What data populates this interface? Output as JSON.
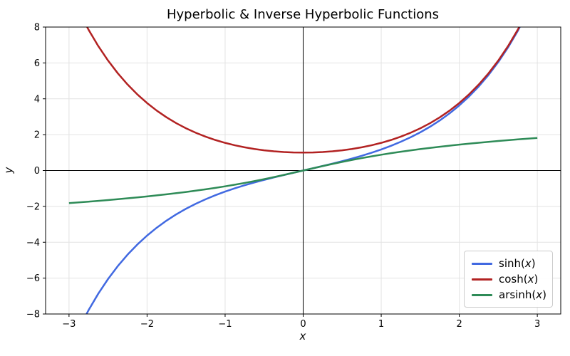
{
  "figure": {
    "title": "Hyperbolic & Inverse Hyperbolic Functions",
    "xlabel": "x",
    "ylabel": "y"
  },
  "colors": {
    "sinh": "#4169e1",
    "cosh": "#b22222",
    "arsinh": "#2e8b57",
    "grid": "#e3e3e3",
    "axis": "#000000",
    "background": "#ffffff",
    "legend_border": "#cccccc"
  },
  "chart_data": {
    "type": "line",
    "title": "Hyperbolic & Inverse Hyperbolic Functions",
    "xlabel": "x",
    "ylabel": "y",
    "xlim": [
      -3.3,
      3.3
    ],
    "ylim": [
      -8,
      8
    ],
    "xticks": [
      -3,
      -2,
      -1,
      0,
      1,
      2,
      3
    ],
    "yticks": [
      -8,
      -6,
      -4,
      -2,
      0,
      2,
      4,
      6,
      8
    ],
    "grid": true,
    "zero_lines": true,
    "legend_position": "lower right",
    "x": [
      -3,
      -2.875,
      -2.75,
      -2.625,
      -2.5,
      -2.375,
      -2.25,
      -2.125,
      -2,
      -1.875,
      -1.75,
      -1.625,
      -1.5,
      -1.375,
      -1.25,
      -1.125,
      -1,
      -0.875,
      -0.75,
      -0.625,
      -0.5,
      -0.375,
      -0.25,
      -0.125,
      0,
      0.125,
      0.25,
      0.375,
      0.5,
      0.625,
      0.75,
      0.875,
      1,
      1.125,
      1.25,
      1.375,
      1.5,
      1.625,
      1.75,
      1.875,
      2,
      2.125,
      2.25,
      2.375,
      2.5,
      2.625,
      2.75,
      2.875,
      3
    ],
    "series": [
      {
        "name": "sinh(x)",
        "color": "#4169e1",
        "values": [
          -10.018,
          -8.835,
          -7.789,
          -6.866,
          -6.05,
          -5.329,
          -4.691,
          -4.127,
          -3.627,
          -3.184,
          -2.79,
          -2.441,
          -2.129,
          -1.851,
          -1.602,
          -1.378,
          -1.175,
          -0.991,
          -0.822,
          -0.666,
          -0.521,
          -0.384,
          -0.253,
          -0.125,
          0,
          0.125,
          0.253,
          0.384,
          0.521,
          0.666,
          0.822,
          0.991,
          1.175,
          1.378,
          1.602,
          1.851,
          2.129,
          2.441,
          2.79,
          3.184,
          3.627,
          4.127,
          4.691,
          5.329,
          6.05,
          6.866,
          7.789,
          8.835,
          10.018
        ]
      },
      {
        "name": "cosh(x)",
        "color": "#b22222",
        "values": [
          10.068,
          8.891,
          7.853,
          6.939,
          6.132,
          5.422,
          4.797,
          4.246,
          3.762,
          3.337,
          2.964,
          2.638,
          2.352,
          2.104,
          1.888,
          1.702,
          1.543,
          1.408,
          1.295,
          1.202,
          1.128,
          1.071,
          1.031,
          1.008,
          1,
          1.008,
          1.031,
          1.071,
          1.128,
          1.202,
          1.295,
          1.408,
          1.543,
          1.702,
          1.888,
          2.104,
          2.352,
          2.638,
          2.964,
          3.337,
          3.762,
          4.246,
          4.797,
          5.422,
          6.132,
          6.939,
          7.853,
          8.891,
          10.068
        ]
      },
      {
        "name": "arsinh(x)",
        "color": "#2e8b57",
        "values": [
          -1.818,
          -1.778,
          -1.736,
          -1.693,
          -1.647,
          -1.6,
          -1.55,
          -1.498,
          -1.444,
          -1.386,
          -1.326,
          -1.262,
          -1.195,
          -1.123,
          -1.048,
          -0.967,
          -0.881,
          -0.79,
          -0.693,
          -0.59,
          -0.481,
          -0.367,
          -0.247,
          -0.125,
          0,
          0.125,
          0.247,
          0.367,
          0.481,
          0.59,
          0.693,
          0.79,
          0.881,
          0.967,
          1.048,
          1.123,
          1.195,
          1.262,
          1.326,
          1.386,
          1.444,
          1.498,
          1.55,
          1.6,
          1.647,
          1.693,
          1.736,
          1.778,
          1.818
        ]
      }
    ]
  }
}
